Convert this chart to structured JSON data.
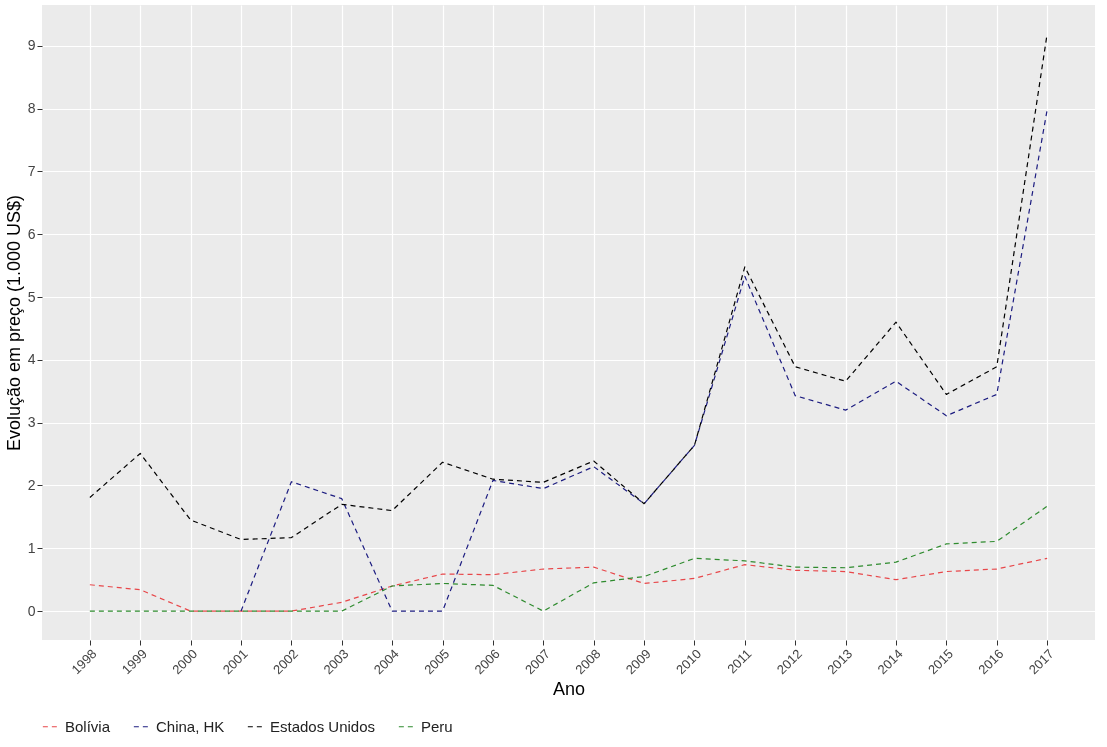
{
  "chart_data": {
    "type": "line",
    "xlabel": "Ano",
    "ylabel": "Evolução em preço  (1.000 US$)",
    "x": [
      1998,
      1999,
      2000,
      2001,
      2002,
      2003,
      2004,
      2005,
      2006,
      2007,
      2008,
      2009,
      2010,
      2011,
      2012,
      2013,
      2014,
      2015,
      2016,
      2017
    ],
    "xlim": [
      1997.05,
      2017.95
    ],
    "xticks": [
      1998,
      1999,
      2000,
      2001,
      2002,
      2003,
      2004,
      2005,
      2006,
      2007,
      2008,
      2009,
      2010,
      2011,
      2012,
      2013,
      2014,
      2015,
      2016,
      2017
    ],
    "ylim": [
      -0.46,
      9.65
    ],
    "yticks": [
      0,
      1,
      2,
      3,
      4,
      5,
      6,
      7,
      8,
      9
    ],
    "grid": true,
    "legend": "bottom",
    "line_style": "dashed",
    "marker": "none",
    "series": [
      {
        "name": "Bolívia",
        "color": "#e8474a",
        "values": [
          0.42,
          0.34,
          0,
          0,
          0,
          0.14,
          0.4,
          0.59,
          0.58,
          0.67,
          0.7,
          0.44,
          0.52,
          0.74,
          0.65,
          0.63,
          0.5,
          0.63,
          0.67,
          0.84
        ]
      },
      {
        "name": "China, HK",
        "color": "#1c1c80",
        "values": [
          null,
          null,
          null,
          0,
          2.06,
          1.79,
          0,
          0,
          2.08,
          1.95,
          2.3,
          1.71,
          2.64,
          5.33,
          3.43,
          3.2,
          3.66,
          3.11,
          3.45,
          7.98
        ]
      },
      {
        "name": "Estados Unidos",
        "color": "#000000",
        "values": [
          1.81,
          2.51,
          1.45,
          1.14,
          1.17,
          1.7,
          1.6,
          2.37,
          2.1,
          2.05,
          2.39,
          1.71,
          2.64,
          5.48,
          3.89,
          3.66,
          4.6,
          3.45,
          3.89,
          9.19
        ]
      },
      {
        "name": "Peru",
        "color": "#2e8b2e",
        "values": [
          0,
          0,
          0,
          0,
          0,
          0,
          0.4,
          0.44,
          0.41,
          0,
          0.45,
          0.55,
          0.84,
          0.8,
          0.7,
          0.69,
          0.78,
          1.07,
          1.11,
          1.67
        ]
      }
    ]
  }
}
